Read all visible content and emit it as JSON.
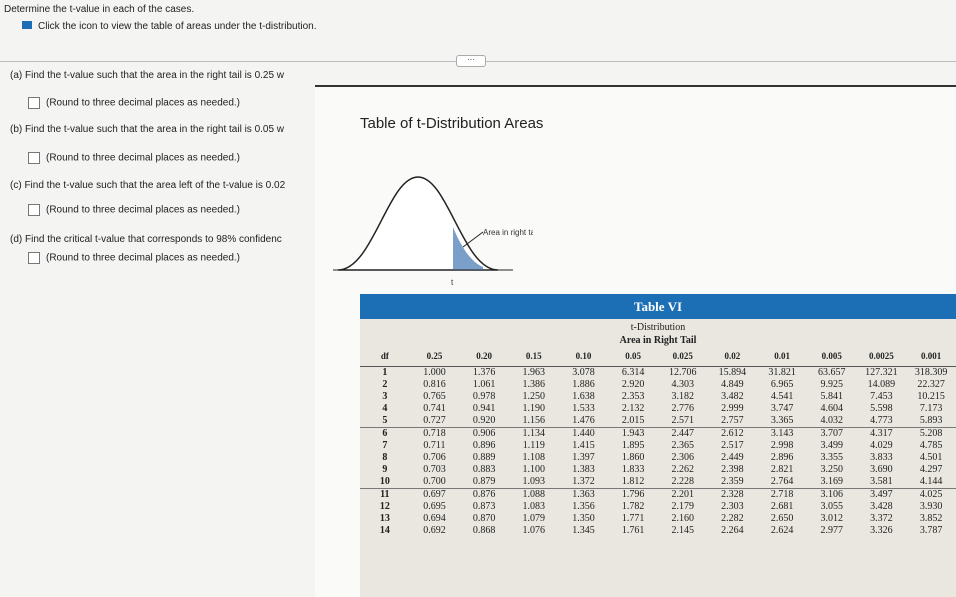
{
  "header": {
    "instruction": "Determine the t-value in each of the cases.",
    "hint": "Click the icon to view the table of areas under the t-distribution."
  },
  "questions": [
    {
      "prompt": "(a) Find the t-value such that the area in the right tail is 0.25 w",
      "note": "(Round to three decimal places as needed.)"
    },
    {
      "prompt": "(b) Find the t-value such that the area in the right tail is 0.05 w",
      "note": "(Round to three decimal places as needed.)"
    },
    {
      "prompt": "(c) Find the t-value such that the area left of the t-value is 0.02",
      "note": "(Round to three decimal places as needed.)"
    },
    {
      "prompt": "(d) Find the critical t-value that corresponds to 98% confidenc",
      "note": "(Round to three decimal places as needed.)"
    }
  ],
  "popup": {
    "title": "Table of t-Distribution Areas",
    "figure_label": "Area in right tail",
    "figure_axis": "t",
    "table": {
      "title": "Table VI",
      "subtitle": "t-Distribution",
      "caption": "Area in Right Tail",
      "columns": [
        "df",
        "0.25",
        "0.20",
        "0.15",
        "0.10",
        "0.05",
        "0.025",
        "0.02",
        "0.01",
        "0.005",
        "0.0025",
        "0.001"
      ],
      "rows": [
        [
          "1",
          "1.000",
          "1.376",
          "1.963",
          "3.078",
          "6.314",
          "12.706",
          "15.894",
          "31.821",
          "63.657",
          "127.321",
          "318.309"
        ],
        [
          "2",
          "0.816",
          "1.061",
          "1.386",
          "1.886",
          "2.920",
          "4.303",
          "4.849",
          "6.965",
          "9.925",
          "14.089",
          "22.327"
        ],
        [
          "3",
          "0.765",
          "0.978",
          "1.250",
          "1.638",
          "2.353",
          "3.182",
          "3.482",
          "4.541",
          "5.841",
          "7.453",
          "10.215"
        ],
        [
          "4",
          "0.741",
          "0.941",
          "1.190",
          "1.533",
          "2.132",
          "2.776",
          "2.999",
          "3.747",
          "4.604",
          "5.598",
          "7.173"
        ],
        [
          "5",
          "0.727",
          "0.920",
          "1.156",
          "1.476",
          "2.015",
          "2.571",
          "2.757",
          "3.365",
          "4.032",
          "4.773",
          "5.893"
        ],
        [
          "6",
          "0.718",
          "0.906",
          "1.134",
          "1.440",
          "1.943",
          "2.447",
          "2.612",
          "3.143",
          "3.707",
          "4.317",
          "5.208"
        ],
        [
          "7",
          "0.711",
          "0.896",
          "1.119",
          "1.415",
          "1.895",
          "2.365",
          "2.517",
          "2.998",
          "3.499",
          "4.029",
          "4.785"
        ],
        [
          "8",
          "0.706",
          "0.889",
          "1.108",
          "1.397",
          "1.860",
          "2.306",
          "2.449",
          "2.896",
          "3.355",
          "3.833",
          "4.501"
        ],
        [
          "9",
          "0.703",
          "0.883",
          "1.100",
          "1.383",
          "1.833",
          "2.262",
          "2.398",
          "2.821",
          "3.250",
          "3.690",
          "4.297"
        ],
        [
          "10",
          "0.700",
          "0.879",
          "1.093",
          "1.372",
          "1.812",
          "2.228",
          "2.359",
          "2.764",
          "3.169",
          "3.581",
          "4.144"
        ],
        [
          "11",
          "0.697",
          "0.876",
          "1.088",
          "1.363",
          "1.796",
          "2.201",
          "2.328",
          "2.718",
          "3.106",
          "3.497",
          "4.025"
        ],
        [
          "12",
          "0.695",
          "0.873",
          "1.083",
          "1.356",
          "1.782",
          "2.179",
          "2.303",
          "2.681",
          "3.055",
          "3.428",
          "3.930"
        ],
        [
          "13",
          "0.694",
          "0.870",
          "1.079",
          "1.350",
          "1.771",
          "2.160",
          "2.282",
          "2.650",
          "3.012",
          "3.372",
          "3.852"
        ],
        [
          "14",
          "0.692",
          "0.868",
          "1.076",
          "1.345",
          "1.761",
          "2.145",
          "2.264",
          "2.624",
          "2.977",
          "3.326",
          "3.787"
        ]
      ]
    }
  }
}
